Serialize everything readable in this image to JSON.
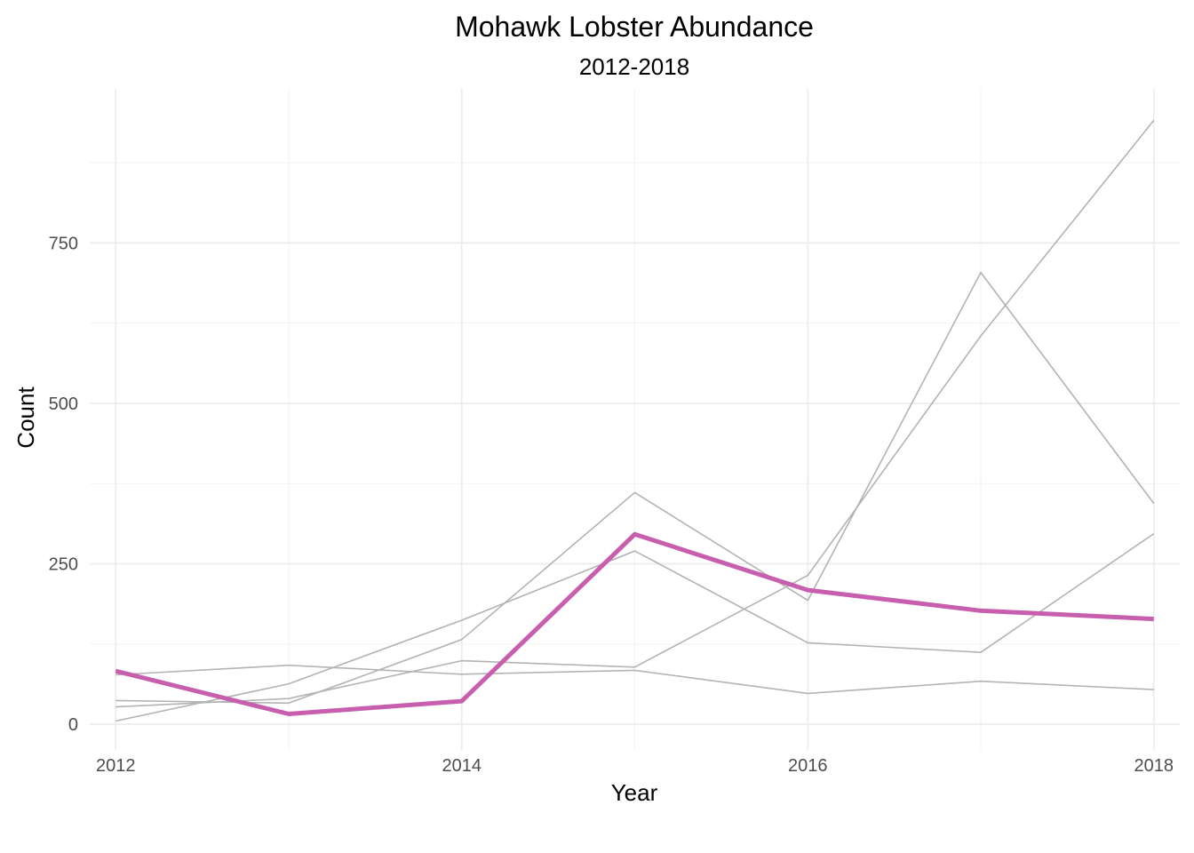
{
  "chart_data": {
    "type": "line",
    "title": "Mohawk Lobster Abundance",
    "subtitle": "2012-2018",
    "xlabel": "Year",
    "ylabel": "Count",
    "x": [
      2012,
      2013,
      2014,
      2015,
      2016,
      2017,
      2018
    ],
    "x_ticks": [
      2012,
      2014,
      2016,
      2018
    ],
    "y_ticks": [
      0,
      250,
      500,
      750
    ],
    "xlim": [
      2011.85,
      2018.15
    ],
    "ylim": [
      -40,
      990
    ],
    "grid": true,
    "legend": "none",
    "background_color": "#b3b3b3",
    "highlight_color": "#c85fae",
    "background_series": [
      {
        "values": [
          77,
          92,
          78,
          84,
          48,
          67,
          54
        ]
      },
      {
        "values": [
          37,
          33,
          132,
          361,
          193,
          704,
          344
        ]
      },
      {
        "values": [
          27,
          40,
          99,
          89,
          232,
          605,
          941
        ]
      },
      {
        "values": [
          5,
          63,
          162,
          270,
          127,
          112,
          297
        ]
      }
    ],
    "highlight_series": {
      "values": [
        83,
        16,
        36,
        296,
        209,
        177,
        164
      ]
    }
  }
}
